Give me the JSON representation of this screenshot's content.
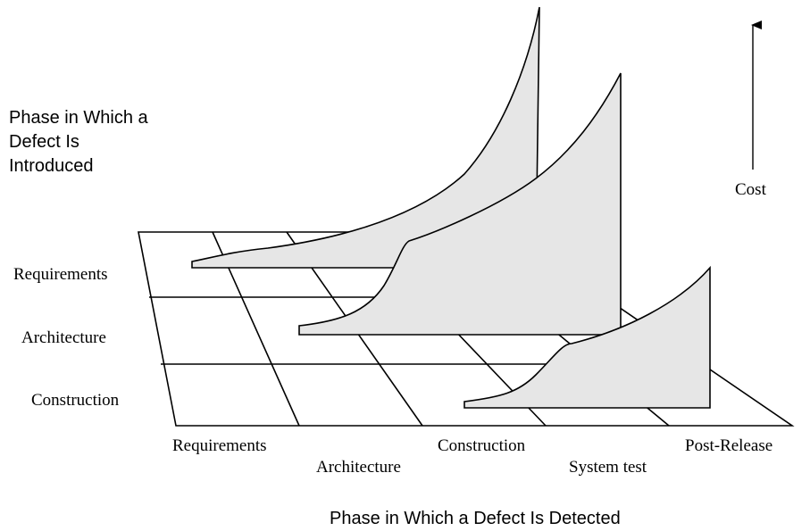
{
  "introduced_title": [
    "Phase in Which a",
    "Defect Is",
    "Introduced"
  ],
  "cost_label": "Cost",
  "introduced_phases": [
    "Requirements",
    "Architecture",
    "Construction"
  ],
  "detected_phases": [
    "Requirements",
    "Architecture",
    "Construction",
    "System test",
    "Post-Release"
  ],
  "detected_title": "Phase in Which a Defect Is Detected"
}
